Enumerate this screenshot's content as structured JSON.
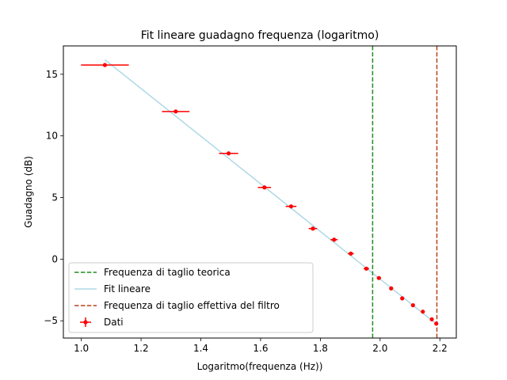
{
  "chart_data": {
    "type": "scatter",
    "title": "Fit lineare guadagno frequenza (logaritmo)",
    "xlabel": "Logaritmo(frequenza (Hz))",
    "ylabel": "Guadagno (dB)",
    "xlim": [
      0.94,
      2.255
    ],
    "ylim": [
      -6.4,
      17.3
    ],
    "xticks": [
      1.0,
      1.2,
      1.4,
      1.6,
      1.8,
      2.0,
      2.2
    ],
    "xtick_labels": [
      "1.0",
      "1.2",
      "1.4",
      "1.6",
      "1.8",
      "2.0",
      "2.2"
    ],
    "yticks": [
      -5,
      0,
      5,
      10,
      15
    ],
    "ytick_labels": [
      "−5",
      "0",
      "5",
      "10",
      "15"
    ],
    "grid": false,
    "legend_position": "lower-left",
    "series": [
      {
        "name": "Dati",
        "kind": "errorbar",
        "color": "#ff0000",
        "points": [
          {
            "x": 1.079,
            "y": 15.75,
            "xerr": 0.08
          },
          {
            "x": 1.316,
            "y": 11.98,
            "xerr": 0.046
          },
          {
            "x": 1.493,
            "y": 8.58,
            "xerr": 0.032
          },
          {
            "x": 1.613,
            "y": 5.82,
            "xerr": 0.022
          },
          {
            "x": 1.702,
            "y": 4.28,
            "xerr": 0.018
          },
          {
            "x": 1.775,
            "y": 2.48,
            "xerr": 0.014
          },
          {
            "x": 1.846,
            "y": 1.58,
            "xerr": 0.012
          },
          {
            "x": 1.902,
            "y": 0.45,
            "xerr": 0.01
          },
          {
            "x": 1.954,
            "y": -0.77,
            "xerr": 0.009
          },
          {
            "x": 1.996,
            "y": -1.53,
            "xerr": 0.007
          },
          {
            "x": 2.037,
            "y": -2.37,
            "xerr": 0.006
          },
          {
            "x": 2.074,
            "y": -3.18,
            "xerr": 0.006
          },
          {
            "x": 2.11,
            "y": -3.74,
            "xerr": 0.005
          },
          {
            "x": 2.143,
            "y": -4.26,
            "xerr": 0.005
          },
          {
            "x": 2.173,
            "y": -4.88,
            "xerr": 0.005
          },
          {
            "x": 2.188,
            "y": -5.23,
            "xerr": 0.004
          }
        ]
      },
      {
        "name": "Fit lineare",
        "kind": "line",
        "color": "#add8e6",
        "x": [
          1.079,
          2.188
        ],
        "y": [
          16.18,
          -5.25
        ]
      },
      {
        "name": "Frequenza di taglio teorica",
        "kind": "vline",
        "color": "#228b22",
        "style": "dashed",
        "x": 1.975
      },
      {
        "name": "Frequenza di taglio effettiva del filtro",
        "kind": "vline",
        "color": "#b5441b",
        "style": "dashed",
        "x": 2.19
      }
    ],
    "legend_order": [
      "Frequenza di taglio teorica",
      "Fit lineare",
      "Frequenza di taglio effettiva del filtro",
      "Dati"
    ]
  }
}
